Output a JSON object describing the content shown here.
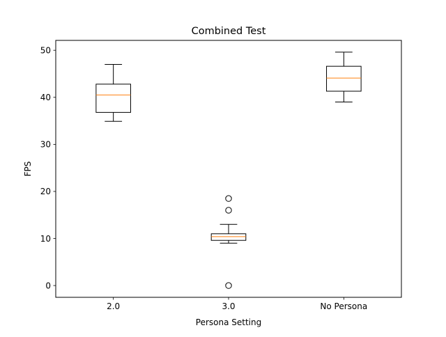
{
  "chart_data": {
    "type": "box",
    "title": "Combined Test",
    "xlabel": "Persona Setting",
    "ylabel": "FPS",
    "ylim": [
      -2.5,
      52.1
    ],
    "yticks": [
      0,
      10,
      20,
      30,
      40,
      50
    ],
    "grid": false,
    "categories": [
      "2.0",
      "3.0",
      "No Persona"
    ],
    "boxes": [
      {
        "category": "2.0",
        "whisker_low": 34.9,
        "q1": 36.8,
        "median": 40.5,
        "q3": 42.8,
        "whisker_high": 47.0,
        "outliers": []
      },
      {
        "category": "3.0",
        "whisker_low": 9.0,
        "q1": 9.6,
        "median": 10.4,
        "q3": 11.0,
        "whisker_high": 13.0,
        "outliers": [
          18.5,
          16.0,
          0.0
        ]
      },
      {
        "category": "No Persona",
        "whisker_low": 39.0,
        "q1": 41.3,
        "median": 44.1,
        "q3": 46.6,
        "whisker_high": 49.6,
        "outliers": []
      }
    ],
    "colors": {
      "box": "#000000",
      "median": "#ff7f0e",
      "axes": "#000000"
    }
  }
}
